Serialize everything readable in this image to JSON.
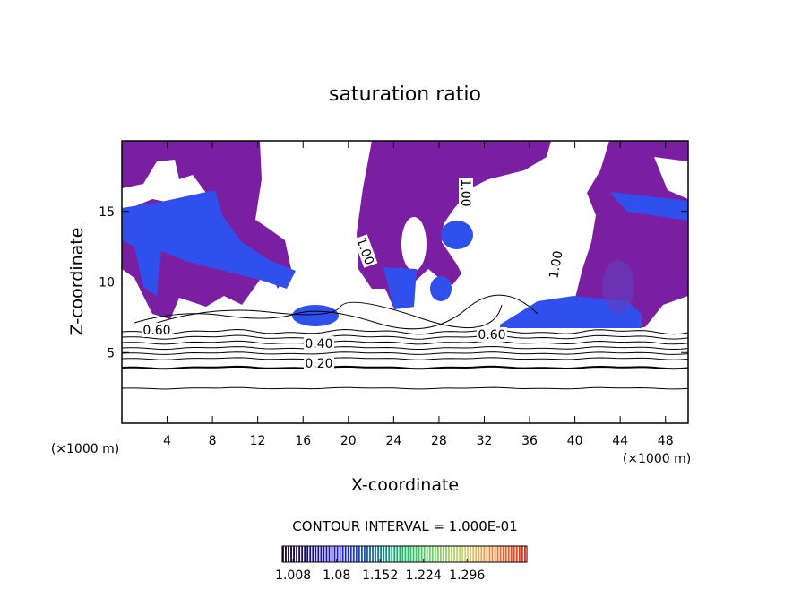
{
  "chart_data": {
    "type": "contour",
    "title": "saturation ratio",
    "x_label": "X-coordinate",
    "y_label": "Z-coordinate",
    "x_unit": "(×1000 m)",
    "y_unit": "(×1000 m)",
    "xlim": [
      0,
      50
    ],
    "xticks": [
      4,
      8,
      12,
      16,
      20,
      24,
      28,
      32,
      36,
      40,
      44,
      48
    ],
    "ylim": [
      0,
      20
    ],
    "yticks": [
      5,
      10,
      15
    ],
    "contour_labels": [
      {
        "value": 0.6,
        "label": "0.60"
      },
      {
        "value": 0.4,
        "label": "0.40"
      },
      {
        "value": 0.2,
        "label": "0.20"
      },
      {
        "value": 0.6,
        "label": "0.60"
      },
      {
        "value": 1.0,
        "label": "1.00"
      },
      {
        "value": 1.0,
        "label": "1.00"
      },
      {
        "value": 1.0,
        "label": "1.00"
      }
    ],
    "contour_interval": "CONTOUR INTERVAL = 1.000E-01",
    "colorbar": {
      "lim": [
        0.99,
        1.395
      ],
      "ticks": [
        1.008,
        1.08,
        1.152,
        1.224,
        1.296
      ],
      "colors": [
        "#14002a",
        "#1e1ef0",
        "#10c060",
        "#d8d870",
        "#ff2000"
      ]
    }
  }
}
